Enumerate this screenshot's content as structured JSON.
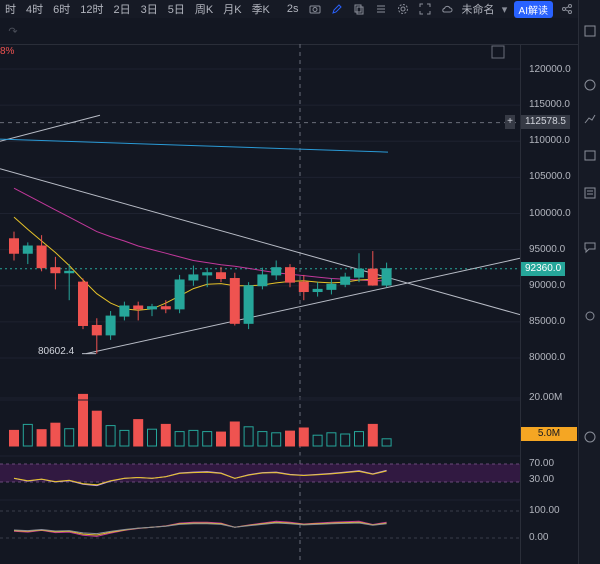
{
  "toolbar": {
    "timeframes": [
      "时",
      "4时",
      "6时",
      "12时",
      "2日",
      "3日",
      "5日",
      "周K",
      "月K",
      "季K"
    ],
    "interval_value": "2s",
    "layout_name": "未命名",
    "ai_label": "AI解读"
  },
  "chart": {
    "change_pct": "8%",
    "low_label": "80602.4"
  },
  "price_scale": {
    "labels": [
      "120000.0",
      "115000.0",
      "110000.0",
      "105000.0",
      "100000.0",
      "95000.0",
      "90000.0",
      "85000.0",
      "80000.0"
    ],
    "crosshair_price": "112578.5",
    "plus_sign": "+",
    "last_price": "92360.0",
    "volume_labels": [
      "20.00M"
    ],
    "volume_tag": "5.0M",
    "rsi_labels": [
      "70.00",
      "30.00"
    ],
    "osc_labels": [
      "100.00",
      "0.00"
    ]
  },
  "colors": {
    "up": "#26a69a",
    "down": "#ef5350",
    "ma_yellow": "#e6c229",
    "ma_magenta": "#c2389b",
    "trend_white": "#b8bcc6",
    "line_cyan": "#2a9ad6",
    "tag_teal": "#26a69a",
    "tag_orange": "#f5a623",
    "tag_gray": "#363a45"
  },
  "chart_data": {
    "type": "candlestick",
    "candles": [
      {
        "o": 96500,
        "h": 97500,
        "l": 93500,
        "c": 94500
      },
      {
        "o": 94500,
        "h": 96000,
        "l": 93000,
        "c": 95500
      },
      {
        "o": 95500,
        "h": 97000,
        "l": 92000,
        "c": 92500
      },
      {
        "o": 92500,
        "h": 94000,
        "l": 89500,
        "c": 91800
      },
      {
        "o": 91800,
        "h": 93000,
        "l": 88000,
        "c": 92000
      },
      {
        "o": 90500,
        "h": 91000,
        "l": 84000,
        "c": 84500
      },
      {
        "o": 84500,
        "h": 85500,
        "l": 80602.4,
        "c": 83200
      },
      {
        "o": 83200,
        "h": 86500,
        "l": 82500,
        "c": 85800
      },
      {
        "o": 85800,
        "h": 87800,
        "l": 85200,
        "c": 87200
      },
      {
        "o": 87200,
        "h": 87800,
        "l": 85200,
        "c": 86800
      },
      {
        "o": 86800,
        "h": 87500,
        "l": 85800,
        "c": 87100
      },
      {
        "o": 87100,
        "h": 88000,
        "l": 86200,
        "c": 86800
      },
      {
        "o": 86800,
        "h": 91500,
        "l": 86200,
        "c": 90800
      },
      {
        "o": 90800,
        "h": 92800,
        "l": 90000,
        "c": 91500
      },
      {
        "o": 91500,
        "h": 92500,
        "l": 89800,
        "c": 91800
      },
      {
        "o": 91800,
        "h": 92600,
        "l": 90500,
        "c": 91000
      },
      {
        "o": 91000,
        "h": 91800,
        "l": 84500,
        "c": 84800
      },
      {
        "o": 84800,
        "h": 90500,
        "l": 84000,
        "c": 90000
      },
      {
        "o": 90000,
        "h": 92500,
        "l": 89500,
        "c": 91500
      },
      {
        "o": 91500,
        "h": 93500,
        "l": 90800,
        "c": 92500
      },
      {
        "o": 92500,
        "h": 93000,
        "l": 89800,
        "c": 90500
      },
      {
        "o": 90500,
        "h": 91500,
        "l": 88000,
        "c": 89200
      },
      {
        "o": 89200,
        "h": 90500,
        "l": 88500,
        "c": 89500
      },
      {
        "o": 89500,
        "h": 91000,
        "l": 88800,
        "c": 90200
      },
      {
        "o": 90200,
        "h": 91800,
        "l": 89800,
        "c": 91200
      },
      {
        "o": 91200,
        "h": 94500,
        "l": 90500,
        "c": 92300
      },
      {
        "o": 92300,
        "h": 94800,
        "l": 90000,
        "c": 90100
      },
      {
        "o": 90100,
        "h": 93200,
        "l": 89800,
        "c": 92360
      }
    ],
    "volume_m": [
      6.5,
      9.0,
      6.8,
      9.5,
      7.2,
      21.5,
      14.5,
      8.5,
      6.5,
      11.0,
      7.0,
      9.0,
      6.0,
      6.5,
      6.0,
      5.8,
      10.0,
      8.0,
      6.0,
      5.5,
      6.2,
      7.5,
      4.5,
      5.5,
      5.0,
      6.0,
      9.0,
      3.0
    ],
    "ma_short": [
      99500,
      97800,
      96200,
      94600,
      92800,
      90800,
      88900,
      87600,
      86800,
      86600,
      86800,
      87600,
      88600,
      89600,
      90200,
      90300,
      90000,
      90000,
      90100,
      90400,
      90600,
      90700,
      90500,
      90400,
      90500,
      90800,
      90900,
      91200
    ],
    "ma_long": [
      103500,
      102500,
      101500,
      100500,
      99500,
      98500,
      97500,
      96800,
      96200,
      95500,
      95000,
      94500,
      94000,
      93500,
      93200,
      92900,
      92700,
      92400,
      92100,
      91800,
      91600,
      91400,
      91200,
      91000,
      90900,
      90800,
      90700,
      90700
    ],
    "rsi": [
      38,
      32,
      36,
      30,
      33,
      25,
      22,
      32,
      38,
      40,
      38,
      42,
      50,
      52,
      53,
      50,
      38,
      46,
      51,
      52,
      47,
      45,
      47,
      49,
      52,
      55,
      48,
      56
    ],
    "osc": [
      25,
      22,
      28,
      20,
      22,
      10,
      6,
      18,
      28,
      35,
      40,
      45,
      55,
      58,
      58,
      55,
      40,
      48,
      55,
      62,
      58,
      52,
      55,
      58,
      60,
      62,
      50,
      58
    ],
    "ylim": [
      77000,
      123000
    ]
  }
}
